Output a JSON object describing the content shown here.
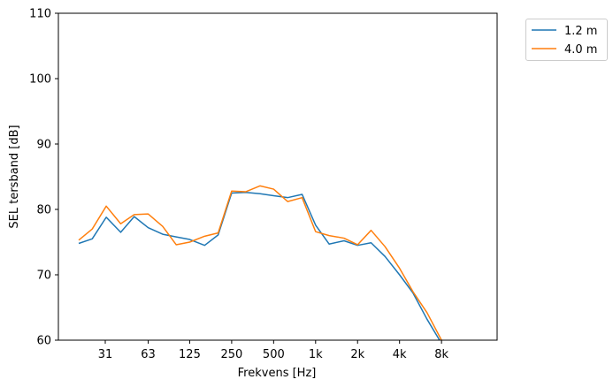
{
  "chart_data": {
    "type": "line",
    "xlabel": "Frekvens [Hz]",
    "ylabel": "SEL tersband [dB]",
    "ylim": [
      60,
      110
    ],
    "yticks": [
      60,
      70,
      80,
      90,
      100,
      110
    ],
    "x_scale": "log",
    "xticks": [
      {
        "value": 31,
        "label": "31"
      },
      {
        "value": 63,
        "label": "63"
      },
      {
        "value": 125,
        "label": "125"
      },
      {
        "value": 250,
        "label": "250"
      },
      {
        "value": 500,
        "label": "500"
      },
      {
        "value": 1000,
        "label": "1k"
      },
      {
        "value": 2000,
        "label": "2k"
      },
      {
        "value": 4000,
        "label": "4k"
      },
      {
        "value": 8000,
        "label": "8k"
      }
    ],
    "x": [
      20,
      25,
      31.5,
      40,
      50,
      63,
      80,
      100,
      125,
      160,
      200,
      250,
      315,
      400,
      500,
      630,
      800,
      1000,
      1250,
      1600,
      2000,
      2500,
      3150,
      4000,
      5000,
      6300,
      8000
    ],
    "series": [
      {
        "name": "1.2 m",
        "color": "#1f77b4",
        "values": [
          74.8,
          75.5,
          78.8,
          76.5,
          78.9,
          77.2,
          76.2,
          75.8,
          75.4,
          74.5,
          76.1,
          82.5,
          82.6,
          82.4,
          82.1,
          81.8,
          82.3,
          77.6,
          74.7,
          75.2,
          74.5,
          74.9,
          72.8,
          70.0,
          67.2,
          63.2,
          59.5
        ]
      },
      {
        "name": "4.0 m",
        "color": "#ff7f0e",
        "values": [
          75.3,
          77.0,
          80.5,
          77.8,
          79.2,
          79.3,
          77.4,
          74.6,
          75.0,
          75.9,
          76.4,
          82.8,
          82.7,
          83.6,
          83.1,
          81.2,
          81.8,
          76.6,
          76.0,
          75.6,
          74.6,
          76.8,
          74.3,
          71.0,
          67.4,
          64.2,
          60.0
        ]
      }
    ],
    "legend": "outside-top-right",
    "grid": false
  }
}
